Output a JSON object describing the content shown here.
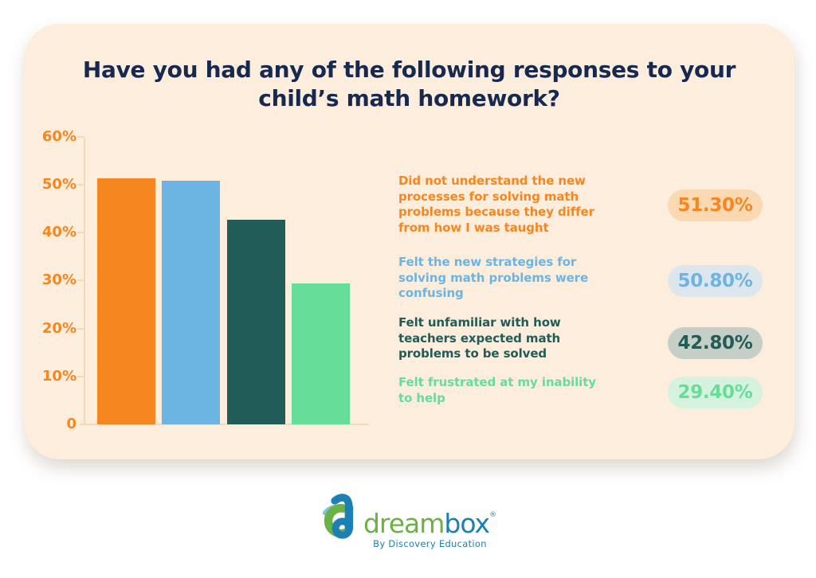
{
  "title": "Have you had any of the following responses to your child’s math homework?",
  "chart_data": {
    "type": "bar",
    "title": "Have you had any of the following responses to your child’s math homework?",
    "xlabel": "",
    "ylabel": "",
    "ylim": [
      0,
      60
    ],
    "grid": false,
    "legend_position": "right",
    "yticks": [
      "60%",
      "50%",
      "40%",
      "30%",
      "20%",
      "10%",
      "0"
    ],
    "items": [
      {
        "label": "Did not understand the new processes for solving math problems because they differ from how I was taught",
        "value": 51.3,
        "display": "51.30%",
        "color": "#F6861F",
        "badge_bg": "#FAD8B2"
      },
      {
        "label": "Felt the new strategies for solving math problems were confusing",
        "value": 50.8,
        "display": "50.80%",
        "color": "#6CB5E3",
        "badge_bg": "#DCE6EC"
      },
      {
        "label": "Felt unfamiliar with how teachers expected math problems to be solved",
        "value": 42.8,
        "display": "42.80%",
        "color": "#215C57",
        "badge_bg": "#C5CFC7"
      },
      {
        "label": "Felt frustrated at my inability to help",
        "value": 29.4,
        "display": "29.40%",
        "color": "#66DD98",
        "badge_bg": "#D5F2DE"
      }
    ]
  },
  "footer": {
    "brand_dream": "dream",
    "brand_box": "box",
    "brand_mark": "®",
    "tagline": "By Discovery Education"
  },
  "colors": {
    "page_bg": "#FFFFFF",
    "card_bg": "#FCEDDD",
    "title_text": "#17294E",
    "axis_line": "#F3D8BC",
    "tick_label": "#F6861F",
    "logo_green": "#6BB244",
    "logo_blue": "#1D80B5",
    "logo_lightblue": "#7EC4E8"
  }
}
